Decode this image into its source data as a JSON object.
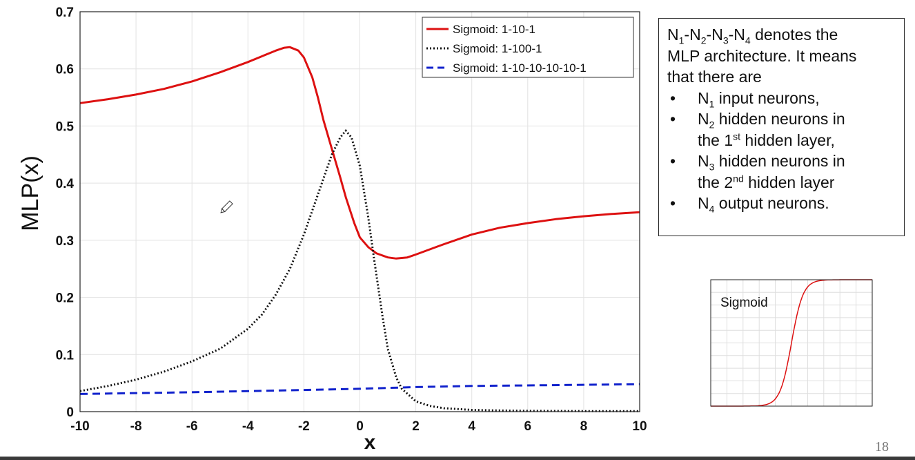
{
  "chart_data": [
    {
      "type": "line",
      "title": "",
      "xlabel": "x",
      "ylabel": "MLP(x)",
      "xlim": [
        -10,
        10
      ],
      "ylim": [
        0,
        0.7
      ],
      "x_ticks": [
        "-10",
        "-8",
        "-6",
        "-4",
        "-2",
        "0",
        "2",
        "4",
        "6",
        "8",
        "10"
      ],
      "y_ticks": [
        "0",
        "0.1",
        "0.2",
        "0.3",
        "0.4",
        "0.5",
        "0.6",
        "0.7"
      ],
      "grid": true,
      "legend_position": "top-right",
      "series": [
        {
          "name": "Sigmoid: 1-10-1",
          "color": "#dd1111",
          "style": "solid",
          "points": [
            [
              -10,
              0.54
            ],
            [
              -9,
              0.547
            ],
            [
              -8,
              0.555
            ],
            [
              -7,
              0.565
            ],
            [
              -6,
              0.578
            ],
            [
              -5,
              0.594
            ],
            [
              -4,
              0.612
            ],
            [
              -3.5,
              0.622
            ],
            [
              -3,
              0.632
            ],
            [
              -2.7,
              0.637
            ],
            [
              -2.5,
              0.638
            ],
            [
              -2.2,
              0.632
            ],
            [
              -2,
              0.62
            ],
            [
              -1.7,
              0.585
            ],
            [
              -1.5,
              0.55
            ],
            [
              -1.3,
              0.51
            ],
            [
              -1,
              0.46
            ],
            [
              -0.7,
              0.41
            ],
            [
              -0.5,
              0.375
            ],
            [
              -0.2,
              0.33
            ],
            [
              0,
              0.305
            ],
            [
              0.3,
              0.288
            ],
            [
              0.6,
              0.277
            ],
            [
              1,
              0.27
            ],
            [
              1.3,
              0.268
            ],
            [
              1.7,
              0.27
            ],
            [
              2,
              0.275
            ],
            [
              3,
              0.293
            ],
            [
              4,
              0.31
            ],
            [
              5,
              0.322
            ],
            [
              6,
              0.33
            ],
            [
              7,
              0.337
            ],
            [
              8,
              0.342
            ],
            [
              9,
              0.346
            ],
            [
              10,
              0.349
            ]
          ]
        },
        {
          "name": "Sigmoid: 1-100-1",
          "color": "#111111",
          "style": "dotted",
          "points": [
            [
              -10,
              0.036
            ],
            [
              -9,
              0.045
            ],
            [
              -8,
              0.056
            ],
            [
              -7,
              0.07
            ],
            [
              -6,
              0.088
            ],
            [
              -5,
              0.11
            ],
            [
              -4,
              0.145
            ],
            [
              -3.5,
              0.17
            ],
            [
              -3,
              0.205
            ],
            [
              -2.5,
              0.25
            ],
            [
              -2,
              0.31
            ],
            [
              -1.5,
              0.38
            ],
            [
              -1,
              0.45
            ],
            [
              -0.7,
              0.48
            ],
            [
              -0.5,
              0.492
            ],
            [
              -0.3,
              0.48
            ],
            [
              0,
              0.43
            ],
            [
              0.3,
              0.34
            ],
            [
              0.5,
              0.27
            ],
            [
              0.8,
              0.17
            ],
            [
              1,
              0.11
            ],
            [
              1.3,
              0.06
            ],
            [
              1.5,
              0.04
            ],
            [
              2,
              0.018
            ],
            [
              2.5,
              0.01
            ],
            [
              3,
              0.006
            ],
            [
              4,
              0.003
            ],
            [
              5,
              0.002
            ],
            [
              6,
              0.0015
            ],
            [
              8,
              0.001
            ],
            [
              10,
              0.001
            ]
          ]
        },
        {
          "name": "Sigmoid: 1-10-10-10-10-1",
          "color": "#1122cc",
          "style": "dashed",
          "points": [
            [
              -10,
              0.031
            ],
            [
              -6,
              0.034
            ],
            [
              -2,
              0.038
            ],
            [
              0,
              0.04
            ],
            [
              2,
              0.043
            ],
            [
              4,
              0.045
            ],
            [
              6,
              0.046
            ],
            [
              8,
              0.047
            ],
            [
              10,
              0.048
            ]
          ]
        }
      ]
    },
    {
      "type": "line",
      "title": "Sigmoid",
      "xlabel": "",
      "ylabel": "",
      "xlim": [
        -10,
        10
      ],
      "ylim": [
        0,
        1
      ],
      "grid": true,
      "series": [
        {
          "color": "#dd1111",
          "function": "sigmoid"
        }
      ]
    }
  ],
  "info_box": {
    "architecture": {
      "n1": "N",
      "s1": "1",
      "d1": "-",
      "n2": "N",
      "s2": "2",
      "d2": "-",
      "n3": "N",
      "s3": "3",
      "d3": "-",
      "n4": "N",
      "s4": "4",
      "rest": " denotes the"
    },
    "line2": "MLP architecture. It means",
    "line3": "that there are",
    "items": [
      {
        "n": "N",
        "sub": "1",
        "text": " input neurons,"
      },
      {
        "n": "N",
        "sub": "2",
        "text": " hidden neurons in",
        "line2_pre": "the 1",
        "line2_sup": "st",
        "line2_post": " hidden layer,"
      },
      {
        "n": "N",
        "sub": "3",
        "text": " hidden neurons in",
        "line2_pre": "the 2",
        "line2_sup": "nd",
        "line2_post": " hidden layer"
      },
      {
        "n": "N",
        "sub": "4",
        "text": " output neurons."
      }
    ]
  },
  "page_number": "18",
  "annotation_icon": "pencil-cursor-icon"
}
